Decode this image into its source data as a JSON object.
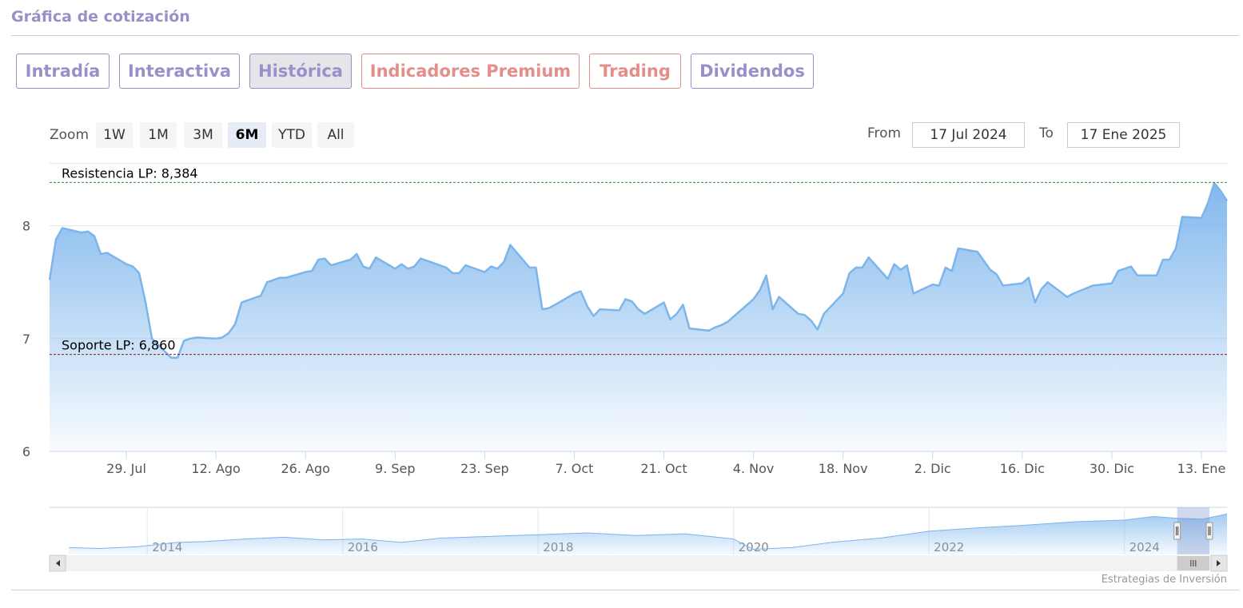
{
  "header": {
    "title": "Gráfica de cotización"
  },
  "tabs": [
    {
      "label": "Intradía",
      "kind": "normal"
    },
    {
      "label": "Interactiva",
      "kind": "normal"
    },
    {
      "label": "Histórica",
      "kind": "active"
    },
    {
      "label": "Indicadores Premium",
      "kind": "premium"
    },
    {
      "label": "Trading",
      "kind": "premium"
    },
    {
      "label": "Dividendos",
      "kind": "normal"
    }
  ],
  "zoom": {
    "label": "Zoom",
    "buttons": [
      "1W",
      "1M",
      "3M",
      "6M",
      "YTD",
      "All"
    ],
    "selected": "6M"
  },
  "range": {
    "from_label": "From",
    "from_value": "17 Jul 2024",
    "to_label": "To",
    "to_value": "17 Ene 2025"
  },
  "colors": {
    "accent": "#9a8fc6",
    "premium": "#e48e8a",
    "series_line": "#7cb5ec",
    "resistance": "#2e8b2e",
    "support": "#8b1a1a"
  },
  "credits": "Estrategias de Inversión",
  "chart_data": [
    {
      "type": "area",
      "grid": true,
      "ylim": [
        6,
        8.55
      ],
      "xlim": [
        "2024-07-17",
        "2025-01-17"
      ],
      "y_ticks": [
        6,
        7,
        8
      ],
      "x_ticks": [
        {
          "date": "2024-07-29",
          "label": "29. Jul"
        },
        {
          "date": "2024-08-12",
          "label": "12. Ago"
        },
        {
          "date": "2024-08-26",
          "label": "26. Ago"
        },
        {
          "date": "2024-09-09",
          "label": "9. Sep"
        },
        {
          "date": "2024-09-23",
          "label": "23. Sep"
        },
        {
          "date": "2024-10-07",
          "label": "7. Oct"
        },
        {
          "date": "2024-10-21",
          "label": "21. Oct"
        },
        {
          "date": "2024-11-04",
          "label": "4. Nov"
        },
        {
          "date": "2024-11-18",
          "label": "18. Nov"
        },
        {
          "date": "2024-12-02",
          "label": "2. Dic"
        },
        {
          "date": "2024-12-16",
          "label": "16. Dic"
        },
        {
          "date": "2024-12-30",
          "label": "30. Dic"
        },
        {
          "date": "2025-01-13",
          "label": "13. Ene"
        }
      ],
      "plot_lines": [
        {
          "label": "Resistencia LP: 8,384",
          "value": 8.384,
          "style": "dashed",
          "color": "#2e8b2e"
        },
        {
          "label": "Soporte LP: 6,860",
          "value": 6.86,
          "style": "dashed",
          "color": "#8b1a1a"
        }
      ],
      "series": [
        {
          "points": [
            [
              "2024-07-17",
              7.52
            ],
            [
              "2024-07-18",
              7.88
            ],
            [
              "2024-07-19",
              7.98
            ],
            [
              "2024-07-22",
              7.94
            ],
            [
              "2024-07-23",
              7.95
            ],
            [
              "2024-07-24",
              7.91
            ],
            [
              "2024-07-25",
              7.75
            ],
            [
              "2024-07-26",
              7.76
            ],
            [
              "2024-07-29",
              7.66
            ],
            [
              "2024-07-30",
              7.64
            ],
            [
              "2024-07-31",
              7.58
            ],
            [
              "2024-08-01",
              7.32
            ],
            [
              "2024-08-02",
              7.0
            ],
            [
              "2024-08-05",
              6.83
            ],
            [
              "2024-08-06",
              6.83
            ],
            [
              "2024-08-07",
              6.98
            ],
            [
              "2024-08-08",
              7.0
            ],
            [
              "2024-08-09",
              7.01
            ],
            [
              "2024-08-12",
              7.0
            ],
            [
              "2024-08-13",
              7.01
            ],
            [
              "2024-08-14",
              7.05
            ],
            [
              "2024-08-15",
              7.13
            ],
            [
              "2024-08-16",
              7.32
            ],
            [
              "2024-08-19",
              7.38
            ],
            [
              "2024-08-20",
              7.5
            ],
            [
              "2024-08-21",
              7.52
            ],
            [
              "2024-08-22",
              7.54
            ],
            [
              "2024-08-23",
              7.54
            ],
            [
              "2024-08-26",
              7.59
            ],
            [
              "2024-08-27",
              7.6
            ],
            [
              "2024-08-28",
              7.7
            ],
            [
              "2024-08-29",
              7.71
            ],
            [
              "2024-08-30",
              7.65
            ],
            [
              "2024-09-02",
              7.7
            ],
            [
              "2024-09-03",
              7.75
            ],
            [
              "2024-09-04",
              7.64
            ],
            [
              "2024-09-05",
              7.62
            ],
            [
              "2024-09-06",
              7.72
            ],
            [
              "2024-09-09",
              7.62
            ],
            [
              "2024-09-10",
              7.66
            ],
            [
              "2024-09-11",
              7.62
            ],
            [
              "2024-09-12",
              7.64
            ],
            [
              "2024-09-13",
              7.71
            ],
            [
              "2024-09-16",
              7.65
            ],
            [
              "2024-09-17",
              7.63
            ],
            [
              "2024-09-18",
              7.58
            ],
            [
              "2024-09-19",
              7.58
            ],
            [
              "2024-09-20",
              7.65
            ],
            [
              "2024-09-23",
              7.59
            ],
            [
              "2024-09-24",
              7.64
            ],
            [
              "2024-09-25",
              7.62
            ],
            [
              "2024-09-26",
              7.68
            ],
            [
              "2024-09-27",
              7.83
            ],
            [
              "2024-09-30",
              7.63
            ],
            [
              "2024-10-01",
              7.63
            ],
            [
              "2024-10-02",
              7.26
            ],
            [
              "2024-10-03",
              7.27
            ],
            [
              "2024-10-04",
              7.3
            ],
            [
              "2024-10-07",
              7.4
            ],
            [
              "2024-10-08",
              7.42
            ],
            [
              "2024-10-09",
              7.29
            ],
            [
              "2024-10-10",
              7.2
            ],
            [
              "2024-10-11",
              7.26
            ],
            [
              "2024-10-14",
              7.25
            ],
            [
              "2024-10-15",
              7.35
            ],
            [
              "2024-10-16",
              7.33
            ],
            [
              "2024-10-17",
              7.26
            ],
            [
              "2024-10-18",
              7.22
            ],
            [
              "2024-10-21",
              7.32
            ],
            [
              "2024-10-22",
              7.17
            ],
            [
              "2024-10-23",
              7.22
            ],
            [
              "2024-10-24",
              7.3
            ],
            [
              "2024-10-25",
              7.09
            ],
            [
              "2024-10-28",
              7.07
            ],
            [
              "2024-10-29",
              7.1
            ],
            [
              "2024-10-30",
              7.12
            ],
            [
              "2024-10-31",
              7.15
            ],
            [
              "2024-11-01",
              7.2
            ],
            [
              "2024-11-04",
              7.35
            ],
            [
              "2024-11-05",
              7.43
            ],
            [
              "2024-11-06",
              7.56
            ],
            [
              "2024-11-07",
              7.26
            ],
            [
              "2024-11-08",
              7.37
            ],
            [
              "2024-11-11",
              7.22
            ],
            [
              "2024-11-12",
              7.21
            ],
            [
              "2024-11-13",
              7.16
            ],
            [
              "2024-11-14",
              7.08
            ],
            [
              "2024-11-15",
              7.22
            ],
            [
              "2024-11-18",
              7.4
            ],
            [
              "2024-11-19",
              7.58
            ],
            [
              "2024-11-20",
              7.63
            ],
            [
              "2024-11-21",
              7.63
            ],
            [
              "2024-11-22",
              7.72
            ],
            [
              "2024-11-25",
              7.53
            ],
            [
              "2024-11-26",
              7.66
            ],
            [
              "2024-11-27",
              7.61
            ],
            [
              "2024-11-28",
              7.65
            ],
            [
              "2024-11-29",
              7.4
            ],
            [
              "2024-12-02",
              7.48
            ],
            [
              "2024-12-03",
              7.47
            ],
            [
              "2024-12-04",
              7.63
            ],
            [
              "2024-12-05",
              7.6
            ],
            [
              "2024-12-06",
              7.8
            ],
            [
              "2024-12-09",
              7.77
            ],
            [
              "2024-12-10",
              7.69
            ],
            [
              "2024-12-11",
              7.61
            ],
            [
              "2024-12-12",
              7.57
            ],
            [
              "2024-12-13",
              7.47
            ],
            [
              "2024-12-16",
              7.49
            ],
            [
              "2024-12-17",
              7.54
            ],
            [
              "2024-12-18",
              7.32
            ],
            [
              "2024-12-19",
              7.44
            ],
            [
              "2024-12-20",
              7.5
            ],
            [
              "2024-12-23",
              7.37
            ],
            [
              "2024-12-24",
              7.4
            ],
            [
              "2024-12-27",
              7.47
            ],
            [
              "2024-12-30",
              7.49
            ],
            [
              "2024-12-31",
              7.6
            ],
            [
              "2025-01-02",
              7.64
            ],
            [
              "2025-01-03",
              7.56
            ],
            [
              "2025-01-06",
              7.56
            ],
            [
              "2025-01-07",
              7.7
            ],
            [
              "2025-01-08",
              7.7
            ],
            [
              "2025-01-09",
              7.8
            ],
            [
              "2025-01-10",
              8.08
            ],
            [
              "2025-01-13",
              8.07
            ],
            [
              "2025-01-14",
              8.2
            ],
            [
              "2025-01-15",
              8.38
            ],
            [
              "2025-01-16",
              8.31
            ],
            [
              "2025-01-17",
              8.22
            ]
          ]
        }
      ]
    },
    {
      "type": "area",
      "navigator": true,
      "xlim": [
        2013.0,
        2025.05
      ],
      "x_tick_labels": [
        "2014",
        "2016",
        "2018",
        "2020",
        "2022",
        "2024"
      ],
      "x_ticks": [
        2014,
        2016,
        2018,
        2020,
        2022,
        2024
      ],
      "selection": [
        2024.54,
        2025.05
      ],
      "series": [
        {
          "points": [
            [
              2013.2,
              4.3
            ],
            [
              2013.5,
              4.2
            ],
            [
              2013.9,
              4.4
            ],
            [
              2014.3,
              4.9
            ],
            [
              2014.6,
              5.0
            ],
            [
              2015.0,
              5.3
            ],
            [
              2015.4,
              5.5
            ],
            [
              2015.8,
              5.2
            ],
            [
              2016.2,
              5.3
            ],
            [
              2016.6,
              4.9
            ],
            [
              2017.0,
              5.4
            ],
            [
              2017.5,
              5.6
            ],
            [
              2018.0,
              5.8
            ],
            [
              2018.5,
              6.0
            ],
            [
              2019.0,
              5.7
            ],
            [
              2019.5,
              5.9
            ],
            [
              2020.0,
              5.3
            ],
            [
              2020.2,
              4.1
            ],
            [
              2020.6,
              4.3
            ],
            [
              2021.0,
              4.9
            ],
            [
              2021.5,
              5.4
            ],
            [
              2022.0,
              6.2
            ],
            [
              2022.5,
              6.6
            ],
            [
              2023.0,
              6.9
            ],
            [
              2023.5,
              7.3
            ],
            [
              2024.0,
              7.5
            ],
            [
              2024.3,
              7.9
            ],
            [
              2024.55,
              7.7
            ],
            [
              2024.8,
              7.6
            ],
            [
              2025.05,
              8.2
            ]
          ]
        }
      ]
    }
  ]
}
